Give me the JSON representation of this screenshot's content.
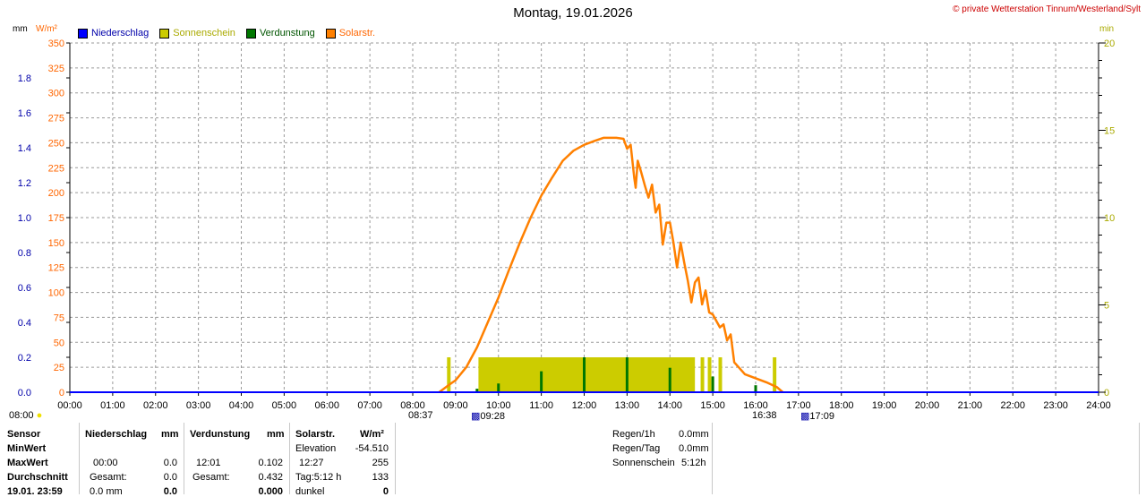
{
  "title": "Montag, 19.01.2026",
  "copyright": "© private Wetterstation Tinnum/Westerland/Sylt",
  "units": {
    "mm": "mm",
    "wm2": "W/m²",
    "min": "min"
  },
  "legend": [
    {
      "label": "Niederschlag",
      "color": "#0000ff",
      "text_color": "#0000aa"
    },
    {
      "label": "Sonnenschein",
      "color": "#cccc00",
      "text_color": "#aaaa00"
    },
    {
      "label": "Verdunstung",
      "color": "#007700",
      "text_color": "#005500"
    },
    {
      "label": "Solarstr.",
      "color": "#ff8000",
      "text_color": "#ff6600"
    }
  ],
  "sun_markers": {
    "sunrise_civil": "08:00",
    "sunrise_left": "08:37",
    "sunrise_right": "09:28",
    "sunset_left": "16:38",
    "sunset_right": "17:09"
  },
  "chart_data": {
    "type": "line",
    "x_ticks": [
      "00:00",
      "01:00",
      "02:00",
      "03:00",
      "04:00",
      "05:00",
      "06:00",
      "07:00",
      "08:00",
      "09:00",
      "10:00",
      "11:00",
      "12:00",
      "13:00",
      "14:00",
      "15:00",
      "16:00",
      "17:00",
      "18:00",
      "19:00",
      "20:00",
      "21:00",
      "22:00",
      "23:00",
      "24:00"
    ],
    "y_left_mm": {
      "ticks": [
        "0.0",
        "0.2",
        "0.4",
        "0.6",
        "0.8",
        "1.0",
        "1.2",
        "1.4",
        "1.6",
        "1.8"
      ],
      "range": [
        0,
        2.0
      ]
    },
    "y_left_wm2": {
      "ticks": [
        "0",
        "25",
        "50",
        "75",
        "100",
        "125",
        "150",
        "175",
        "200",
        "225",
        "250",
        "275",
        "300",
        "325",
        "350"
      ],
      "range": [
        0,
        350
      ]
    },
    "y_right_min": {
      "ticks": [
        "0",
        "5",
        "10",
        "15",
        "20"
      ],
      "range": [
        0,
        20
      ]
    },
    "series": [
      {
        "name": "Solarstr.",
        "color": "#ff8000",
        "axis": "W/m²",
        "x": [
          "08:37",
          "08:50",
          "09:00",
          "09:15",
          "09:30",
          "09:45",
          "10:00",
          "10:15",
          "10:30",
          "10:45",
          "11:00",
          "11:15",
          "11:30",
          "11:45",
          "12:00",
          "12:15",
          "12:27",
          "12:45",
          "12:55",
          "13:00",
          "13:05",
          "13:10",
          "13:12",
          "13:15",
          "13:20",
          "13:25",
          "13:30",
          "13:35",
          "13:40",
          "13:45",
          "13:50",
          "13:55",
          "14:00",
          "14:05",
          "14:10",
          "14:15",
          "14:20",
          "14:25",
          "14:30",
          "14:35",
          "14:40",
          "14:45",
          "14:50",
          "14:55",
          "15:00",
          "15:10",
          "15:15",
          "15:20",
          "15:25",
          "15:30",
          "15:45",
          "16:00",
          "16:15",
          "16:30",
          "16:38"
        ],
        "y": [
          0,
          7,
          12,
          25,
          45,
          70,
          95,
          123,
          150,
          175,
          197,
          215,
          232,
          242,
          248,
          252,
          255,
          255,
          254,
          244,
          248,
          215,
          205,
          232,
          220,
          207,
          195,
          208,
          180,
          188,
          148,
          170,
          170,
          150,
          125,
          150,
          130,
          112,
          90,
          110,
          115,
          88,
          102,
          80,
          78,
          65,
          68,
          52,
          58,
          30,
          18,
          14,
          10,
          5,
          0
        ]
      },
      {
        "name": "Niederschlag",
        "color": "#0000ff",
        "axis": "mm",
        "x": [
          "00:00",
          "24:00"
        ],
        "y": [
          0,
          0
        ]
      }
    ],
    "sunshine_bars": [
      {
        "from": "08:48",
        "to": "08:53",
        "value": 1
      },
      {
        "from": "09:32",
        "to": "14:35",
        "value": 1
      },
      {
        "from": "14:43",
        "to": "14:48",
        "value": 1
      },
      {
        "from": "14:53",
        "to": "14:58",
        "value": 1
      },
      {
        "from": "15:08",
        "to": "15:13",
        "value": 1
      },
      {
        "from": "16:24",
        "to": "16:29",
        "value": 1
      }
    ],
    "evaporation_spikes": [
      {
        "x": "09:30",
        "y": 0.02
      },
      {
        "x": "10:00",
        "y": 0.05
      },
      {
        "x": "11:00",
        "y": 0.12
      },
      {
        "x": "12:00",
        "y": 0.2
      },
      {
        "x": "13:00",
        "y": 0.2
      },
      {
        "x": "14:00",
        "y": 0.14
      },
      {
        "x": "15:00",
        "y": 0.09
      },
      {
        "x": "16:00",
        "y": 0.04
      }
    ]
  },
  "stats": {
    "headers": {
      "sensor": "Sensor",
      "rain": "Niederschlag",
      "rain_unit": "mm",
      "evap": "Verdunstung",
      "evap_unit": "mm",
      "solar": "Solarstr.",
      "solar_unit": "W/m²"
    },
    "rows": [
      {
        "label": "MinWert",
        "rain_time": "",
        "rain_val": "",
        "evap_time": "",
        "evap_val": "",
        "solar_label": "Elevation",
        "solar_val": "-54.510"
      },
      {
        "label": "MaxWert",
        "rain_time": "00:00",
        "rain_val": "0.0",
        "evap_time": "12:01",
        "evap_val": "0.102",
        "solar_label": "12:27",
        "solar_val": "255"
      },
      {
        "label": "Durchschnitt",
        "rain_time": "Gesamt:",
        "rain_val": "0.0",
        "evap_time": "Gesamt:",
        "evap_val": "0.432",
        "solar_label": "Tag:5:12 h",
        "solar_val": "133"
      },
      {
        "label": "19.01. 23:59",
        "rain_time": "0.0 mm",
        "rain_val": "0.0",
        "evap_time": "",
        "evap_val": "0.000",
        "solar_label": "dunkel",
        "solar_val": "0"
      }
    ],
    "side": [
      {
        "label": "Regen/1h",
        "value": "0.0mm"
      },
      {
        "label": "Regen/Tag",
        "value": "0.0mm"
      },
      {
        "label": "Sonnenschein",
        "value": "5:12h"
      }
    ]
  }
}
